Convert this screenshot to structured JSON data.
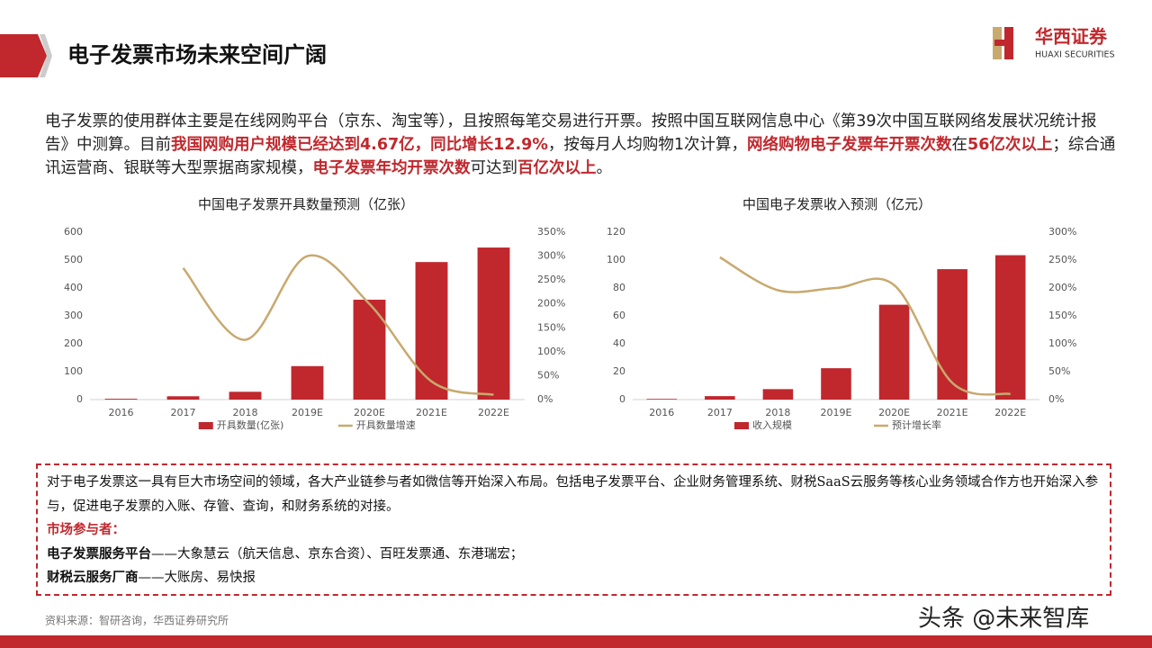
{
  "header": {
    "title": "电子发票市场未来空间广阔",
    "logo_name": "华西证券",
    "logo_sub": "HUAXI SECURITIES"
  },
  "paragraph": {
    "highlight_color": "#c0282d",
    "segments": [
      {
        "text": "电子发票的使用群体主要是在线网购平台（京东、淘宝等），且按照每笔交易进行开票。按照中国互联网信息中心《第39次中国互联网络发展状况统计报告》中测算。目前",
        "highlight": false
      },
      {
        "text": "我国网购用户规模已经达到4.67亿，同比增长12.9%",
        "highlight": true
      },
      {
        "text": "，按每月人均购物1次计算，",
        "highlight": false
      },
      {
        "text": "网络购物电子发票年开票次数",
        "highlight": true
      },
      {
        "text": "在",
        "highlight": false
      },
      {
        "text": "56亿次以上",
        "highlight": true
      },
      {
        "text": "；综合通讯运营商、银联等大型票据商家规模，",
        "highlight": false
      },
      {
        "text": "电子发票年均开票次数",
        "highlight": true
      },
      {
        "text": "可达到",
        "highlight": false
      },
      {
        "text": "百亿次以上",
        "highlight": true
      },
      {
        "text": "。",
        "highlight": false
      }
    ]
  },
  "chart_data": [
    {
      "type": "bar-line",
      "title": "中国电子发票开具数量预测（亿张）",
      "categories": [
        "2016",
        "2017",
        "2018",
        "2019E",
        "2020E",
        "2021E",
        "2022E"
      ],
      "series": [
        {
          "name": "开具数量(亿张)",
          "color": "#c0282d",
          "values": [
            3,
            12,
            28,
            120,
            358,
            493,
            545
          ]
        },
        {
          "name": "开具数量增速",
          "color": "#c8a96e",
          "axis": "y2",
          "values": [
            null,
            275,
            125,
            300,
            200,
            38,
            10
          ]
        }
      ],
      "ylim": [
        0,
        600
      ],
      "yticks": [
        0,
        100,
        200,
        300,
        400,
        500,
        600
      ],
      "y2lim": [
        0,
        350
      ],
      "y2ticks": [
        {
          "value": 0,
          "label": "0%"
        },
        {
          "value": 50,
          "label": "50%"
        },
        {
          "value": 100,
          "label": "100%"
        },
        {
          "value": 150,
          "label": "150%"
        },
        {
          "value": 200,
          "label": "200%"
        },
        {
          "value": 250,
          "label": "250%"
        },
        {
          "value": 300,
          "label": "300%"
        },
        {
          "value": 350,
          "label": "350%"
        }
      ],
      "grid": false
    },
    {
      "type": "bar-line",
      "title": "中国电子发票收入预测（亿元）",
      "categories": [
        "2016",
        "2017",
        "2018",
        "2019E",
        "2020E",
        "2021E",
        "2022E"
      ],
      "series": [
        {
          "name": "收入规模",
          "color": "#c0282d",
          "values": [
            0.5,
            2.5,
            7.5,
            22.5,
            68,
            93.5,
            103.5
          ]
        },
        {
          "name": "预计增长率",
          "color": "#c8a96e",
          "axis": "y2",
          "values": [
            null,
            255,
            196,
            200,
            205,
            30,
            10
          ]
        }
      ],
      "ylim": [
        0,
        120
      ],
      "yticks": [
        0,
        20,
        40,
        60,
        80,
        100,
        120
      ],
      "y2lim": [
        0,
        300
      ],
      "y2ticks": [
        {
          "value": 0,
          "label": "0%"
        },
        {
          "value": 50,
          "label": "50%"
        },
        {
          "value": 100,
          "label": "100%"
        },
        {
          "value": 150,
          "label": "150%"
        },
        {
          "value": 200,
          "label": "200%"
        },
        {
          "value": 250,
          "label": "250%"
        },
        {
          "value": 300,
          "label": "300%"
        }
      ],
      "grid": false
    }
  ],
  "box": {
    "intro": "对于电子发票这一具有巨大市场空间的领域，各大产业链参与者如微信等开始深入布局。包括电子发票平台、企业财务管理系统、财税SaaS云服务等核心业务领域合作方也开始深入参与，促进电子发票的入账、存管、查询，和财务系统的对接。",
    "participants": "市场参与者：",
    "items": [
      {
        "lead": "电子发票服务平台",
        "rest": "——大象慧云（航天信息、京东合资）、百旺发票通、东港瑞宏；"
      },
      {
        "lead": "财税云服务厂商",
        "rest": "——大账房、易快报"
      }
    ]
  },
  "footer": {
    "source": "资料来源：智研咨询，华西证券研究所",
    "watermark": "头条 @未来智库"
  }
}
